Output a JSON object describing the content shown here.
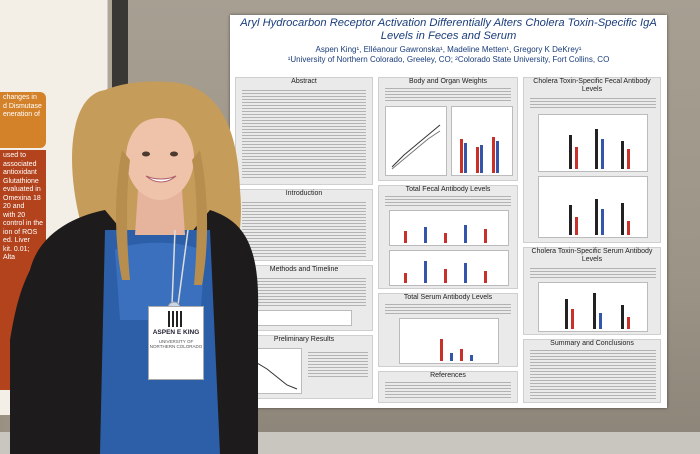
{
  "left_poster": {
    "box1": "changes in\nd Dismutase\neneration of",
    "box2": "used to\nassociated\nantioxidant\nGlutathione\nevaluated in\nOmexina 18\n20 and\nwith 20\ncontrol in the\nion of ROS\ned. Liver\nkit. 0.01;\nAlta"
  },
  "poster": {
    "title": "Aryl Hydrocarbon Receptor Activation Differentially Alters Cholera Toxin-Specific IgA Levels in Feces and Serum",
    "authors": "Aspen King¹, Elléanour Gawronska¹, Madeline Metten¹, Gregory K DeKrey¹",
    "affiliations": "¹University of Northern Colorado, Greeley, CO; ²Colorado State University, Fort Collins, CO",
    "sections": {
      "abstract": "Abstract",
      "introduction": "Introduction",
      "methods": "Methods and Timeline",
      "preliminary": "Preliminary Results",
      "body_weights": "Body and Organ Weights",
      "fecal": "Total Fecal Antibody Levels",
      "serum": "Total Serum Antibody Levels",
      "references": "References",
      "ct_fecal": "Cholera Toxin-Specific Fecal Antibody Levels",
      "ct_serum": "Cholera Toxin-Specific Serum Antibody Levels",
      "summary": "Summary and Conclusions"
    }
  },
  "badge": {
    "name": "ASPEN E KING",
    "org": "UNIVERSITY OF NORTHERN COLORADO"
  },
  "colors": {
    "poster_blue": "#1a3d7a",
    "bar_red": "#c8302a",
    "bar_blue": "#3355aa"
  }
}
